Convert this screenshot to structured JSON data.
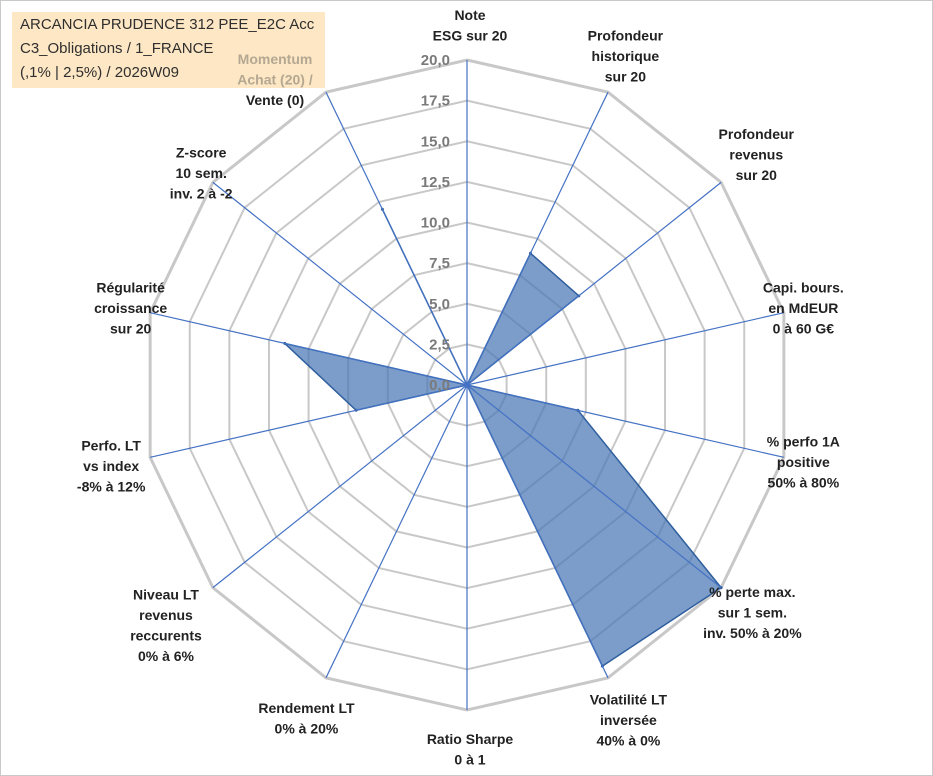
{
  "info_box": {
    "line1": "ARCANCIA PRUDENCE 312 PEE_E2C Acc",
    "line2": "C3_Obligations / 1_FRANCE",
    "line3": "(,1% | 2,5%) / 2026W09"
  },
  "chart_data": {
    "type": "radar",
    "title": "",
    "r_min": 0,
    "r_max": 20,
    "tick_values": [
      0,
      2.5,
      5,
      7.5,
      10,
      12.5,
      15,
      17.5,
      20
    ],
    "tick_labels": [
      "0,0",
      "2,5",
      "5,0",
      "7,5",
      "10,0",
      "12,5",
      "15,0",
      "17,5",
      "20,0"
    ],
    "grid": true,
    "axes": [
      {
        "label": [
          "Note",
          "ESG sur 20"
        ],
        "value": 0
      },
      {
        "label": [
          "Profondeur",
          "historique",
          "sur 20"
        ],
        "value": 9
      },
      {
        "label": [
          "Profondeur",
          "revenus",
          "sur 20"
        ],
        "value": 8.8
      },
      {
        "label": [
          "Capi. bours.",
          "en MdEUR",
          "0 à 60 G€"
        ],
        "value": 0
      },
      {
        "label": [
          "% perfo 1A",
          "positive",
          "50% à 80%"
        ],
        "value": 7
      },
      {
        "label": [
          "% perte max.",
          "sur 1 sem.",
          "inv. 50% à 20%"
        ],
        "value": 20
      },
      {
        "label": [
          "Volatilité LT",
          "inversée",
          "40% à 0%"
        ],
        "value": 19.2
      },
      {
        "label": [
          "Ratio Sharpe",
          "0 à 1"
        ],
        "value": 0
      },
      {
        "label": [
          "Rendement LT",
          "0% à 20%"
        ],
        "value": 0
      },
      {
        "label": [
          "Niveau LT",
          "revenus",
          "reccurents",
          "0% à 6%"
        ],
        "value": 0
      },
      {
        "label": [
          "Perfo. LT",
          "vs index",
          "-8% à 12%"
        ],
        "value": 7
      },
      {
        "label": [
          "Régularité",
          "croissance",
          "sur 20"
        ],
        "value": 11.5
      },
      {
        "label": [
          "Z-score",
          "10 sem.",
          "inv. 2 à -2"
        ],
        "value": 0
      },
      {
        "label": [
          "Momentum",
          "Achat (20) /",
          "Vente (0)"
        ],
        "value": 12
      }
    ],
    "series": [
      {
        "values": [
          0,
          9,
          8.8,
          0,
          7,
          20,
          19.2,
          0,
          0,
          0,
          7,
          11.5,
          0,
          12
        ]
      }
    ],
    "colors": {
      "fill": "#4a77b4",
      "stroke": "#2f5f9e",
      "grid": "#c8c8c8",
      "spoke": "#4472c4",
      "momentum_label": "#b5a892"
    }
  }
}
